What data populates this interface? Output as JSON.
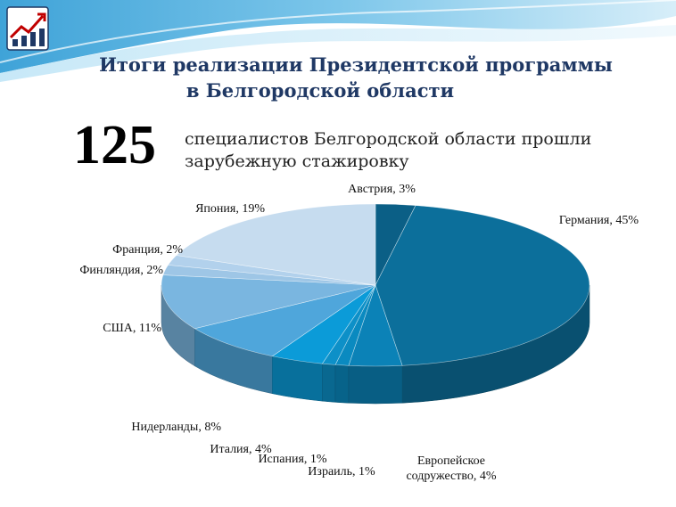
{
  "title_line1": "Итоги реализации Президентской программы",
  "title_line2": "в Белгородской области",
  "big_number": "125",
  "description_line1": "специалистов Белгородской области прошли",
  "description_line2": "зарубежную стажировку",
  "chart_data": {
    "type": "pie",
    "title": "",
    "slices": [
      {
        "name": "Австрия",
        "value": 3,
        "label": "Австрия, 3%",
        "color": "#0b5f86"
      },
      {
        "name": "Германия",
        "value": 45,
        "label": "Германия, 45%",
        "color": "#0c6f9b"
      },
      {
        "name": "Европейское содружество",
        "value": 4,
        "label": "Европейское содружество, 4%",
        "color": "#0b82b7"
      },
      {
        "name": "Израиль",
        "value": 1,
        "label": "Израиль, 1%",
        "color": "#0a8ac0"
      },
      {
        "name": "Испания",
        "value": 1,
        "label": "Испания, 1%",
        "color": "#0d90c8"
      },
      {
        "name": "Италия",
        "value": 4,
        "label": "Италия, 4%",
        "color": "#0b9bd8"
      },
      {
        "name": "Нидерланды",
        "value": 8,
        "label": "Нидерланды, 8%",
        "color": "#4fa6db"
      },
      {
        "name": "США",
        "value": 11,
        "label": "США, 11%",
        "color": "#7ab6e0"
      },
      {
        "name": "Финляндия",
        "value": 2,
        "label": "Финляндия, 2%",
        "color": "#9ec6e6"
      },
      {
        "name": "Франция",
        "value": 2,
        "label": "Франция, 2%",
        "color": "#b2d1ec"
      },
      {
        "name": "Япония",
        "value": 19,
        "label": "Япония, 19%",
        "color": "#c6dcef"
      }
    ]
  }
}
